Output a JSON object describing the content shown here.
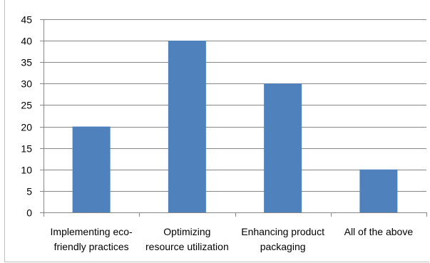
{
  "chart_data": {
    "type": "bar",
    "title": "",
    "xlabel": "",
    "ylabel": "",
    "categories": [
      [
        "Implementing eco-",
        "friendly practices"
      ],
      [
        "Optimizing",
        "resource utilization"
      ],
      [
        "Enhancing product",
        "packaging"
      ],
      [
        "All of the above"
      ]
    ],
    "values": [
      20,
      40,
      30,
      10
    ],
    "ylim": [
      0,
      45
    ],
    "yticks": [
      "0",
      "5",
      "10",
      "15",
      "20",
      "25",
      "30",
      "35",
      "40",
      "45"
    ],
    "grid": true,
    "legend": "none",
    "bar_color": "#4f81bd",
    "grid_color": "#878787"
  }
}
